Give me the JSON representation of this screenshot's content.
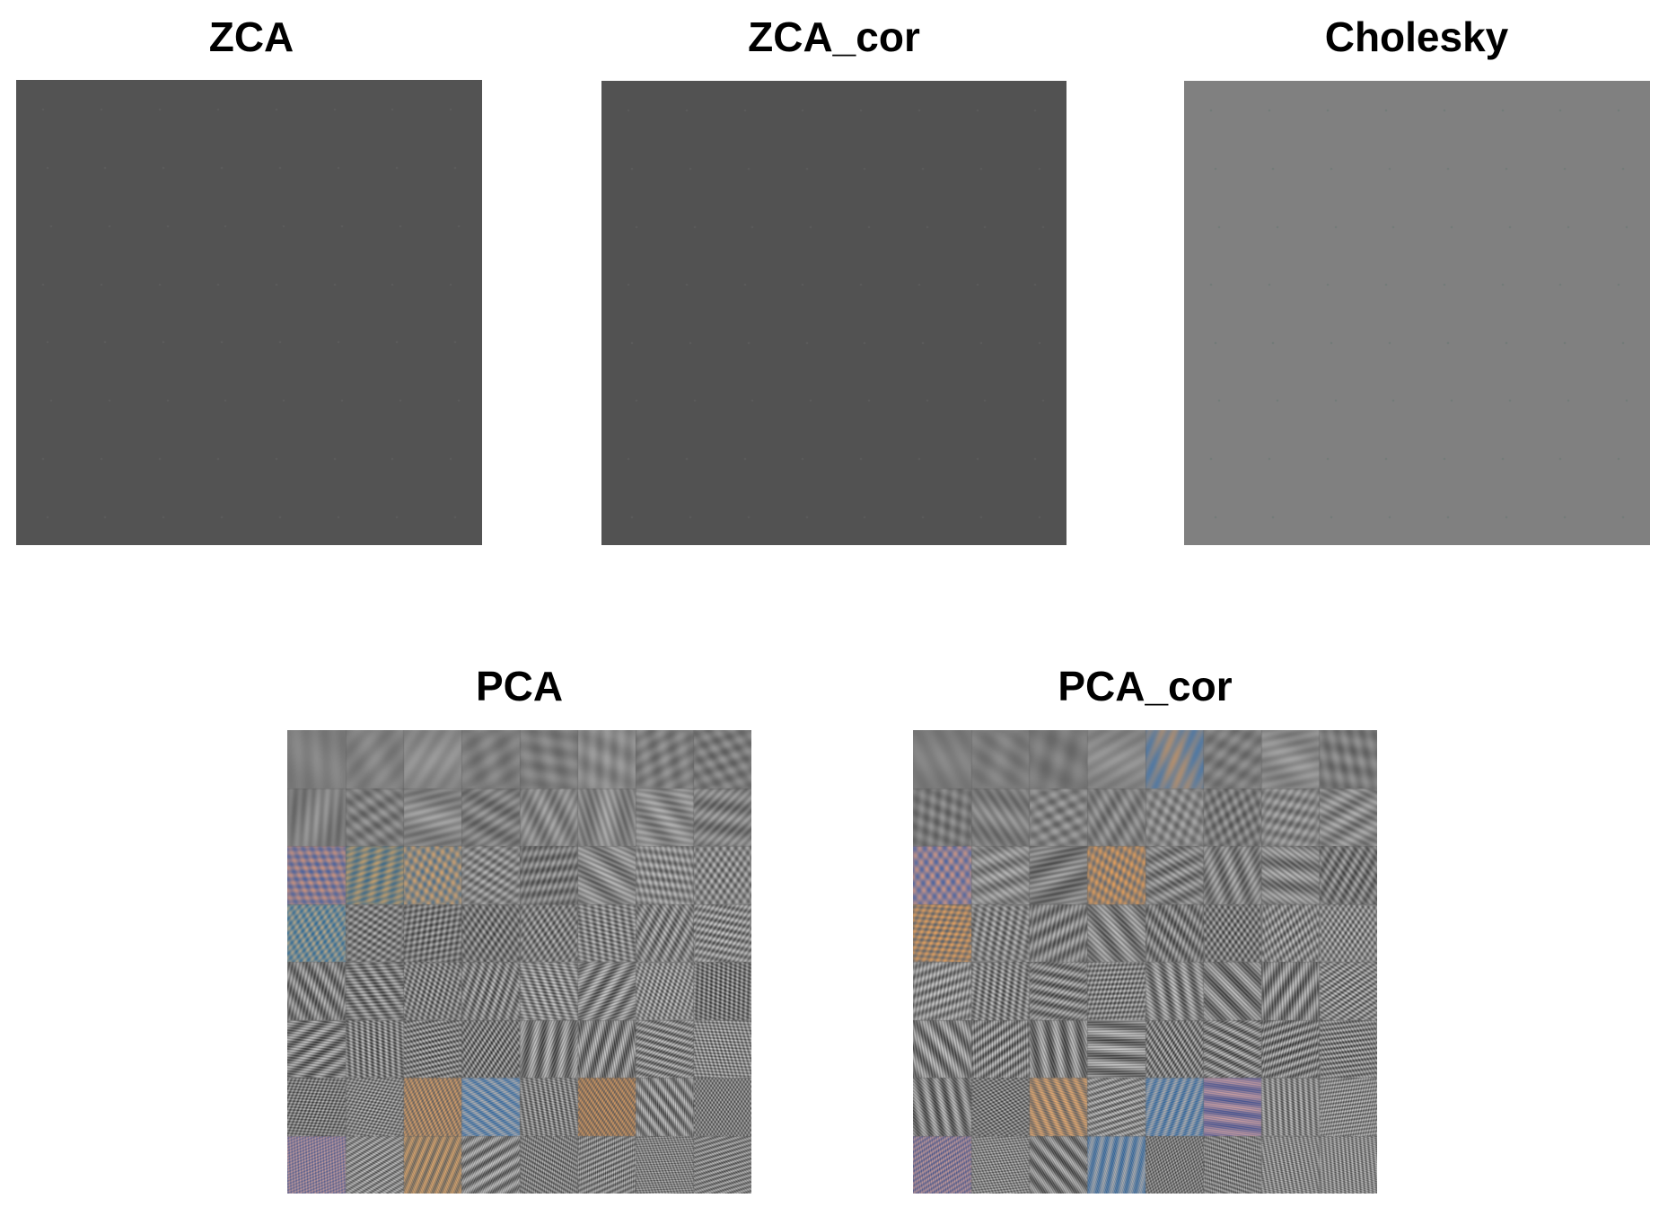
{
  "panels_top": [
    {
      "title": "ZCA",
      "fill": "#535353",
      "dot": "#5e5e5e"
    },
    {
      "title": "ZCA_cor",
      "fill": "#525252",
      "dot": "#5d5d5d"
    },
    {
      "title": "Cholesky",
      "fill": "#808080",
      "dot": "#6f7a76"
    }
  ],
  "panels_bottom": [
    {
      "title": "PCA",
      "grid": "8x8",
      "tinted_tiles": [
        [
          2,
          0,
          "#8b6a95"
        ],
        [
          2,
          1,
          "#7e8a78"
        ],
        [
          2,
          2,
          "#9a8a70"
        ],
        [
          3,
          0,
          "#6f9fb0"
        ],
        [
          6,
          2,
          "#c8874a"
        ],
        [
          6,
          3,
          "#5a8fc8"
        ],
        [
          6,
          5,
          "#c07a3a"
        ],
        [
          7,
          0,
          "#9a7ab0"
        ],
        [
          7,
          2,
          "#c48a4a"
        ]
      ]
    },
    {
      "title": "PCA_cor",
      "grid": "8x8",
      "tinted_tiles": [
        [
          0,
          4,
          "#7a8aa0"
        ],
        [
          2,
          0,
          "#9a79a8"
        ],
        [
          2,
          3,
          "#c8874a"
        ],
        [
          3,
          0,
          "#c8874a"
        ],
        [
          6,
          2,
          "#c8874a"
        ],
        [
          6,
          4,
          "#5a8fc8"
        ],
        [
          6,
          5,
          "#8a6ab0"
        ],
        [
          7,
          0,
          "#9a7ab0"
        ],
        [
          7,
          3,
          "#5a8fc8"
        ]
      ]
    }
  ]
}
